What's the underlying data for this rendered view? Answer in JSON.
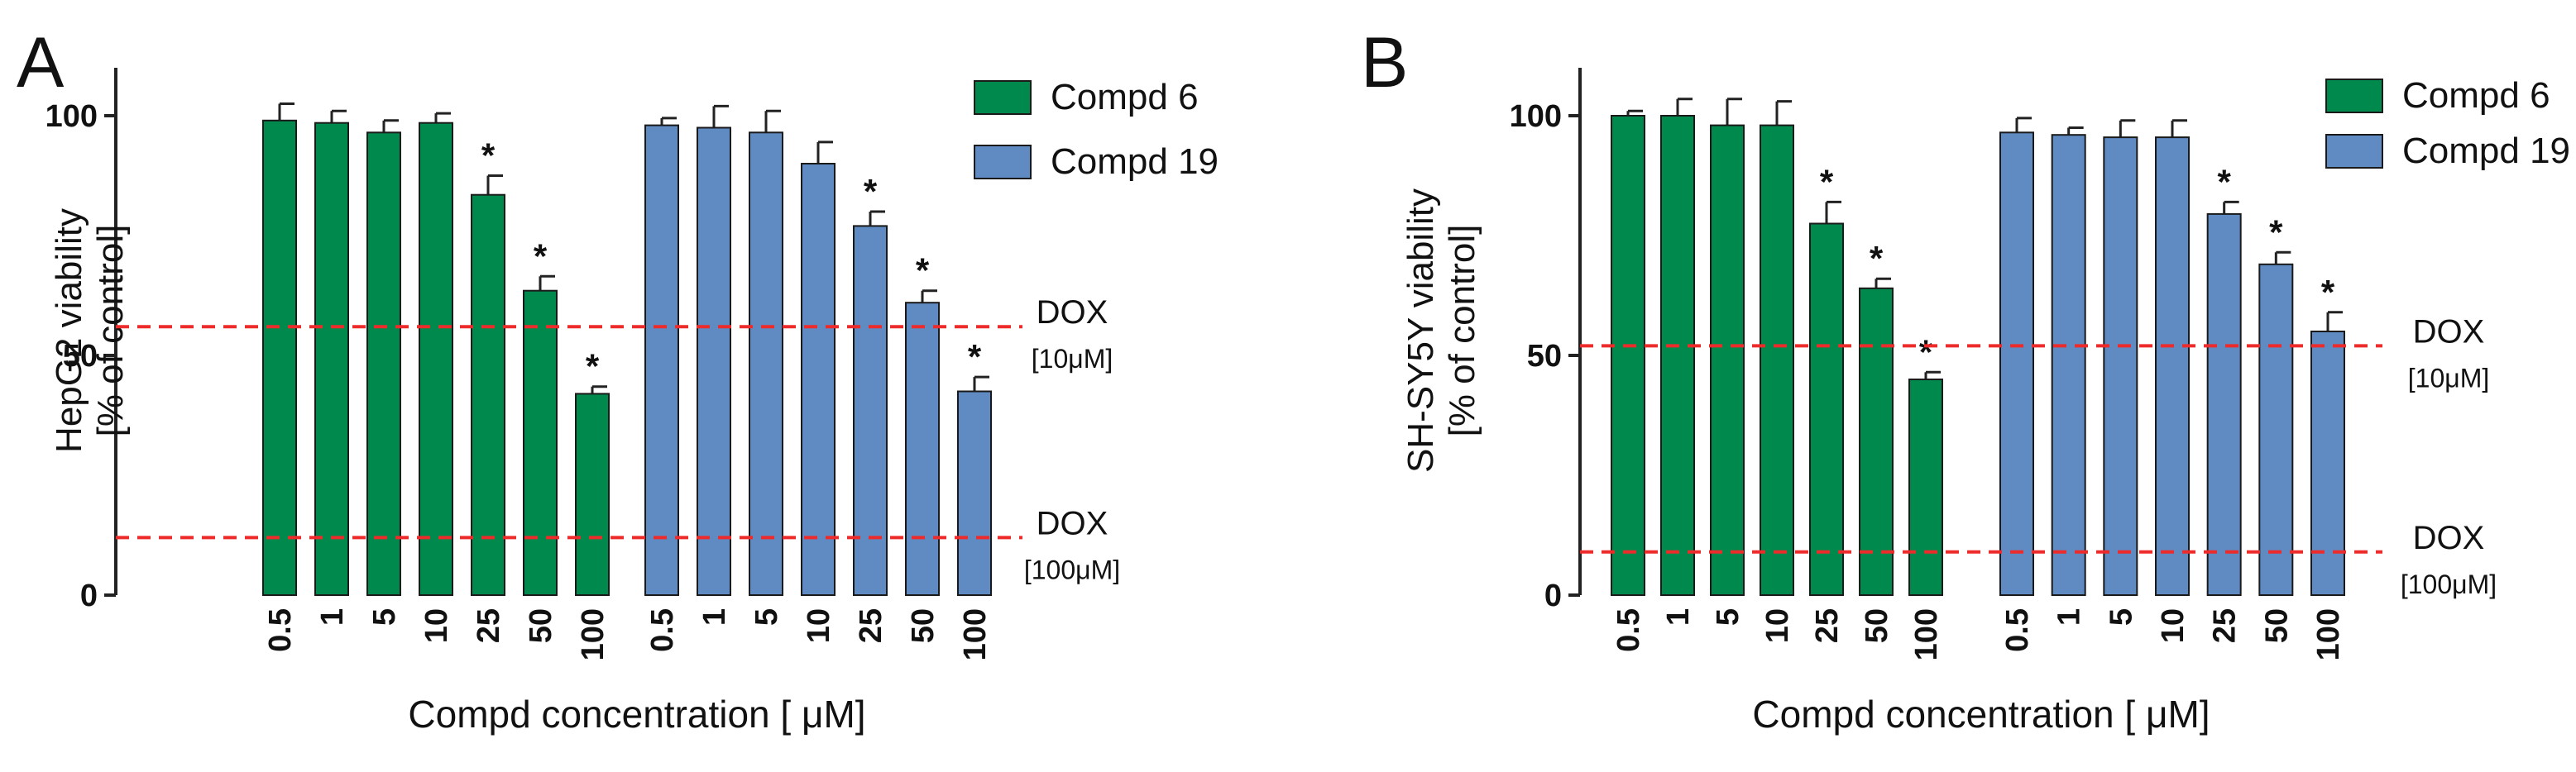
{
  "colors": {
    "compd6": "#00894D",
    "compd19": "#5F8AC2",
    "dox_line": "#EE2B2B",
    "axis": "#222222",
    "text": "#111111"
  },
  "chart_data": [
    {
      "panel": "A",
      "type": "bar",
      "title": "",
      "xlabel": "Compd concentration [ μM]",
      "ylabel": "HepG2 viability",
      "ylabel2": "[% of control]",
      "ylim": [
        0,
        110
      ],
      "yticks": [
        "0",
        "50",
        "100"
      ],
      "legend_position": "top-right",
      "legend": [
        "Compd 6",
        "Compd 19"
      ],
      "categories": [
        "0.5",
        "1",
        "5",
        "10",
        "25",
        "50",
        "100"
      ],
      "series": [
        {
          "name": "Compd 6",
          "values": [
            99,
            98.5,
            96.5,
            98.5,
            83.5,
            63.5,
            42
          ],
          "errors": [
            3.5,
            2.5,
            2.5,
            2,
            4,
            3,
            1.5
          ],
          "significant": [
            false,
            false,
            false,
            false,
            true,
            true,
            true
          ]
        },
        {
          "name": "Compd 19",
          "values": [
            98,
            97.5,
            96.5,
            90,
            77,
            61,
            42.5
          ],
          "errors": [
            1.5,
            4.5,
            4.5,
            4.5,
            3,
            2.5,
            3
          ],
          "significant": [
            false,
            false,
            false,
            false,
            true,
            true,
            true
          ]
        }
      ],
      "reference_lines": [
        {
          "name": "DOX",
          "label": "[10μM]",
          "value": 56
        },
        {
          "name": "DOX",
          "label": "[100μM]",
          "value": 12
        }
      ],
      "marker": "*"
    },
    {
      "panel": "B",
      "type": "bar",
      "title": "",
      "xlabel": "Compd concentration [ μM]",
      "ylabel": "SH-SY5Y viability",
      "ylabel2": "[% of control]",
      "ylim": [
        0,
        110
      ],
      "yticks": [
        "0",
        "50",
        "100"
      ],
      "legend_position": "top-right",
      "legend": [
        "Compd 6",
        "Compd 19"
      ],
      "categories": [
        "0.5",
        "1",
        "5",
        "10",
        "25",
        "50",
        "100"
      ],
      "series": [
        {
          "name": "Compd 6",
          "values": [
            100,
            100,
            98,
            98,
            77.5,
            64,
            45
          ],
          "errors": [
            1,
            3.5,
            5.5,
            5,
            4.5,
            2,
            1.5
          ],
          "significant": [
            false,
            false,
            false,
            false,
            true,
            true,
            true
          ]
        },
        {
          "name": "Compd 19",
          "values": [
            96.5,
            96,
            95.5,
            95.5,
            79.5,
            69,
            55
          ],
          "errors": [
            3,
            1.5,
            3.5,
            3.5,
            2.5,
            2.5,
            4
          ],
          "significant": [
            false,
            false,
            false,
            false,
            true,
            true,
            true
          ]
        }
      ],
      "reference_lines": [
        {
          "name": "DOX",
          "label": "[10μM]",
          "value": 52
        },
        {
          "name": "DOX",
          "label": "[100μM]",
          "value": 9
        }
      ],
      "marker": "*"
    }
  ]
}
